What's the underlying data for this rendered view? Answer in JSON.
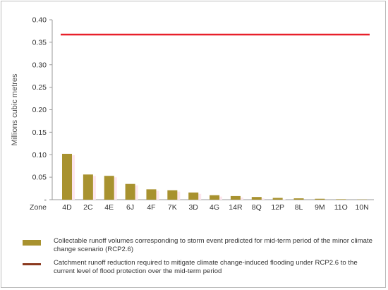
{
  "chart_data": {
    "type": "bar",
    "ylabel": "Millions cubic metres",
    "xaxis_prefix": "Zone",
    "ylim": [
      0,
      0.4
    ],
    "yticks": [
      {
        "value": 0,
        "label": "-"
      },
      {
        "value": 0.05,
        "label": "0.05"
      },
      {
        "value": 0.1,
        "label": "0.10"
      },
      {
        "value": 0.15,
        "label": "0.15"
      },
      {
        "value": 0.2,
        "label": "0.20"
      },
      {
        "value": 0.25,
        "label": "0.25"
      },
      {
        "value": 0.3,
        "label": "0.30"
      },
      {
        "value": 0.35,
        "label": "0.35"
      },
      {
        "value": 0.4,
        "label": "0.40"
      }
    ],
    "categories": [
      "4D",
      "2C",
      "4E",
      "6J",
      "4F",
      "7K",
      "3D",
      "4G",
      "14R",
      "8Q",
      "12P",
      "8L",
      "9M",
      "11O",
      "10N"
    ],
    "series": [
      {
        "name": "Collectable runoff volumes corresponding to storm event predicted for mid-term period of the minor climate change scenario (RCP2.6)",
        "type": "bar",
        "color": "#a8922f",
        "values": [
          0.102,
          0.056,
          0.053,
          0.035,
          0.023,
          0.021,
          0.016,
          0.01,
          0.008,
          0.006,
          0.004,
          0.003,
          0.002,
          0.001,
          0.0005
        ]
      },
      {
        "name": "Catchment runoff reduction required to mitigate climate change-induced flooding under RCP2.6 to the current level of flood protection over the mid-term period",
        "type": "line",
        "color": "#e8202a",
        "legend_color": "#8b3a1f",
        "value": 0.367
      }
    ],
    "bar_shadow_color": "#fde6ee",
    "grid": false
  }
}
